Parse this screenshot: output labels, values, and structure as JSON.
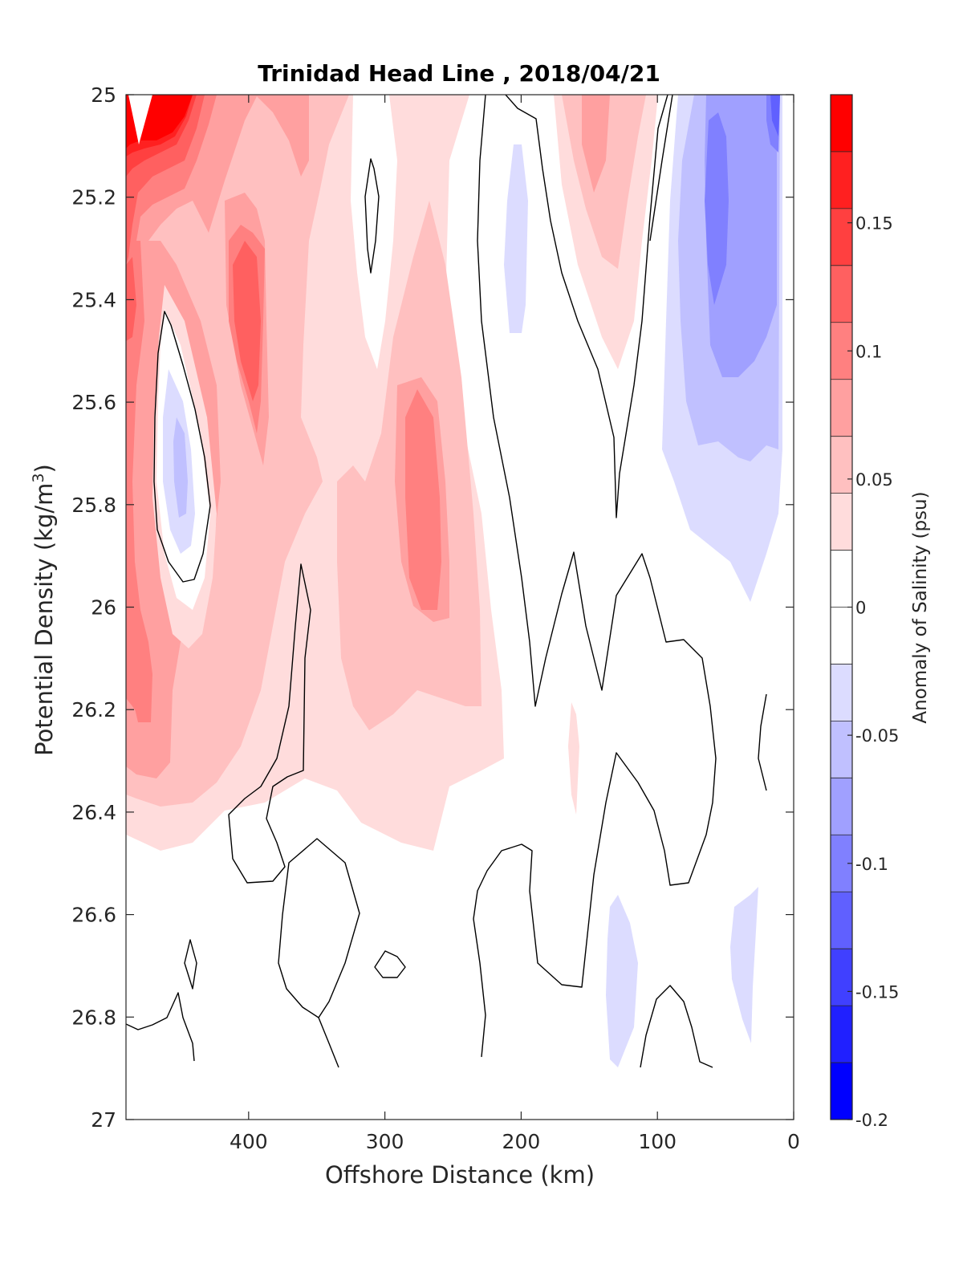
{
  "chart_data": {
    "type": "contour",
    "title": "Trinidad Head Line , 2018/04/21",
    "xlabel": "Offshore Distance (km)",
    "ylabel_main": "Potential Density (kg/m",
    "ylabel_sup": "3",
    "ylabel_close": ")",
    "xlim": [
      490,
      0
    ],
    "ylim": [
      25,
      27
    ],
    "x_reversed": true,
    "y_reversed": true,
    "xticks": [
      400,
      300,
      200,
      100,
      0
    ],
    "yticks": [
      25,
      25.2,
      25.4,
      25.6,
      25.8,
      26,
      26.2,
      26.4,
      26.6,
      26.8,
      27
    ],
    "xtick_labels": [
      "400",
      "300",
      "200",
      "100",
      "0"
    ],
    "ytick_labels": [
      "25",
      "25.2",
      "25.4",
      "25.6",
      "25.8",
      "26",
      "26.2",
      "26.4",
      "26.6",
      "26.8",
      "27"
    ],
    "colorbar": {
      "label": "Anomaly of Salinity (psu)",
      "range": [
        -0.2,
        0.2
      ],
      "step": 0.025,
      "ticks": [
        0.15,
        0.1,
        0.05,
        0,
        -0.05,
        -0.1,
        -0.15,
        -0.2
      ],
      "tick_labels": [
        "0.15",
        "0.1",
        "0.05",
        "0",
        "-0.05",
        "-0.1",
        "-0.15",
        "-0.2"
      ],
      "colors_top_to_bottom": [
        "#ff0000",
        "#ff2020",
        "#ff4040",
        "#ff6060",
        "#ff8080",
        "#ffa0a0",
        "#ffc0c0",
        "#ffdcdc",
        "#ffffff",
        "#ffffff",
        "#dcdcff",
        "#c0c0ff",
        "#a0a0ff",
        "#8080ff",
        "#6060ff",
        "#4040ff",
        "#2020ff",
        "#0000ff"
      ]
    },
    "regions": [
      {
        "level": 0.025,
        "color": "#ffdcdc",
        "points": [
          [
            490,
            25
          ],
          [
            275,
            25
          ],
          [
            270,
            25.2
          ],
          [
            265,
            25.5
          ],
          [
            255,
            25.8
          ],
          [
            240,
            26.0
          ],
          [
            225,
            26.15
          ],
          [
            215,
            26.3
          ],
          [
            230,
            26.4
          ],
          [
            240,
            26.5
          ],
          [
            280,
            26.47
          ],
          [
            350,
            26.42
          ],
          [
            400,
            26.42
          ],
          [
            440,
            26.47
          ],
          [
            470,
            26.45
          ],
          [
            490,
            26.4
          ]
        ]
      },
      {
        "level": 0.025,
        "color": "#ffdcdc",
        "points": [
          [
            340,
            25
          ],
          [
            305,
            25
          ],
          [
            295,
            25.08
          ],
          [
            270,
            25.22
          ],
          [
            262,
            25.3
          ],
          [
            285,
            25.42
          ],
          [
            330,
            25.58
          ],
          [
            355,
            25.78
          ],
          [
            375,
            25.68
          ],
          [
            395,
            25.62
          ],
          [
            412,
            25.6
          ],
          [
            415,
            25.4
          ],
          [
            400,
            25.2
          ],
          [
            390,
            25
          ]
        ]
      },
      {
        "level": 0.025,
        "color": "#ffdcdc",
        "points": [
          [
            175,
            25
          ],
          [
            105,
            25
          ],
          [
            100,
            25.2
          ],
          [
            110,
            25.4
          ],
          [
            125,
            25.55
          ],
          [
            135,
            25.5
          ],
          [
            150,
            25.3
          ],
          [
            160,
            25.1
          ]
        ]
      },
      {
        "level": 0.025,
        "color": "#ffdcdc",
        "points": [
          [
            163,
            26.28
          ],
          [
            158,
            26.2
          ],
          [
            155,
            26.3
          ],
          [
            160,
            26.4
          ],
          [
            165,
            26.3
          ]
        ]
      },
      {
        "level": 0.05,
        "color": "#ffc0c0",
        "points": [
          [
            490,
            25
          ],
          [
            380,
            25
          ],
          [
            385,
            25.1
          ],
          [
            395,
            25.3
          ],
          [
            410,
            25.45
          ],
          [
            400,
            25.5
          ],
          [
            380,
            25.75
          ],
          [
            365,
            25.95
          ],
          [
            350,
            26.1
          ],
          [
            315,
            26.22
          ],
          [
            300,
            26.35
          ],
          [
            270,
            26.4
          ],
          [
            240,
            26.43
          ],
          [
            210,
            26.5
          ],
          [
            190,
            26.5
          ],
          [
            160,
            26.42
          ],
          [
            140,
            26.35
          ],
          [
            120,
            26.3
          ],
          [
            100,
            26.3
          ],
          [
            80,
            26.2
          ],
          [
            60,
            26.1
          ],
          [
            50,
            26.0
          ],
          [
            30,
            25.95
          ],
          [
            10,
            25.9
          ],
          [
            0,
            25.8
          ],
          [
            0,
            27
          ],
          [
            490,
            27
          ]
        ],
        "hidden": true
      },
      {
        "level": 0.05,
        "color": "#ffc0c0",
        "points": [
          [
            490,
            25
          ],
          [
            380,
            25
          ],
          [
            383,
            25.15
          ],
          [
            395,
            25.4
          ],
          [
            400,
            25.5
          ],
          [
            385,
            25.68
          ],
          [
            370,
            25.85
          ],
          [
            350,
            26.05
          ],
          [
            330,
            26.2
          ],
          [
            310,
            26.3
          ],
          [
            280,
            26.35
          ],
          [
            250,
            26.38
          ],
          [
            230,
            26.42
          ],
          [
            200,
            26.45
          ],
          [
            200,
            26.45
          ]
        ],
        "hidden": true
      }
    ],
    "contours_zero": [
      [
        [
          490,
          26.81
        ],
        [
          480,
          26.82
        ],
        [
          460,
          26.8
        ],
        [
          450,
          26.76
        ],
        [
          445,
          26.83
        ],
        [
          440,
          26.88
        ]
      ],
      [
        [
          445,
          26.68
        ],
        [
          440,
          26.65
        ],
        [
          435,
          26.74
        ],
        [
          440,
          26.7
        ]
      ],
      [
        [
          475,
          25.45
        ],
        [
          480,
          25.6
        ],
        [
          470,
          25.8
        ],
        [
          455,
          25.93
        ],
        [
          440,
          25.95
        ],
        [
          430,
          25.85
        ],
        [
          425,
          25.8
        ],
        [
          430,
          25.6
        ],
        [
          445,
          25.5
        ],
        [
          460,
          25.42
        ]
      ],
      [
        [
          310,
          25.13
        ],
        [
          305,
          25.2
        ],
        [
          308,
          25.3
        ],
        [
          313,
          25.35
        ],
        [
          318,
          25.25
        ],
        [
          316,
          25.18
        ]
      ],
      [
        [
          380,
          26.5
        ],
        [
          370,
          26.55
        ],
        [
          350,
          26.6
        ],
        [
          325,
          26.62
        ],
        [
          315,
          26.65
        ],
        [
          300,
          26.68
        ],
        [
          290,
          26.7
        ],
        [
          295,
          26.72
        ],
        [
          315,
          26.74
        ],
        [
          340,
          26.8
        ],
        [
          350,
          26.8
        ],
        [
          360,
          26.85
        ],
        [
          380,
          26.9
        ]
      ],
      [
        [
          310,
          26.48
        ],
        [
          330,
          26.55
        ],
        [
          345,
          26.6
        ],
        [
          340,
          26.75
        ],
        [
          330,
          26.78
        ],
        [
          300,
          26.72
        ]
      ],
      [
        [
          230,
          25
        ],
        [
          220,
          25.2
        ],
        [
          215,
          25.4
        ],
        [
          205,
          25.6
        ],
        [
          195,
          25.8
        ],
        [
          185,
          26.0
        ],
        [
          190,
          26.2
        ],
        [
          175,
          26.0
        ],
        [
          162,
          25.9
        ],
        [
          150,
          26.05
        ],
        [
          135,
          26.15
        ],
        [
          125,
          25.95
        ],
        [
          112,
          25.9
        ],
        [
          92,
          26.05
        ],
        [
          85,
          26.25
        ],
        [
          90,
          26.5
        ],
        [
          95,
          26.55
        ],
        [
          110,
          26.45
        ],
        [
          122,
          26.3
        ],
        [
          130,
          25.85
        ],
        [
          140,
          25.7
        ],
        [
          150,
          25.5
        ],
        [
          160,
          25.3
        ],
        [
          170,
          25.15
        ],
        [
          185,
          25
        ],
        [
          210,
          25.0
        ]
      ],
      [
        [
          230,
          25
        ],
        [
          215,
          25.2
        ],
        [
          207,
          25.5
        ],
        [
          205,
          25.6
        ]
      ]
    ]
  }
}
